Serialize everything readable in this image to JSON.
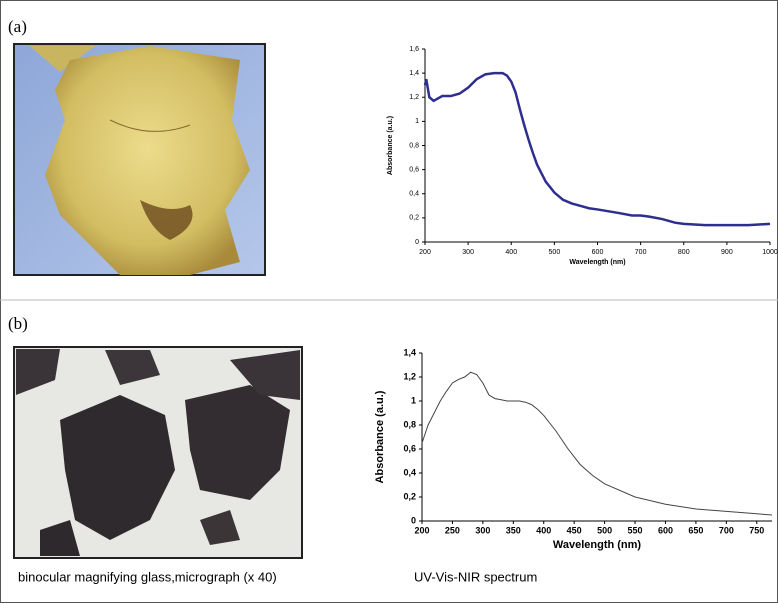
{
  "panel_labels": [
    "(a)",
    "(b)"
  ],
  "captions": [
    "binocular magnifying glass,micrograph (x 40)",
    "UV-Vis-NIR spectrum"
  ],
  "chart_data": [
    {
      "type": "line",
      "xlabel": "Wavelength (nm)",
      "ylabel": "Absorbance (a.u.)",
      "xlim": [
        200,
        1000
      ],
      "xticks": [
        200,
        300,
        400,
        500,
        600,
        700,
        800,
        900,
        1000
      ],
      "ylim": [
        0,
        1.6
      ],
      "yticks": [
        0,
        {
          "value": 0.2,
          "label": "0,2"
        },
        {
          "value": 0.4,
          "label": "0,4"
        },
        {
          "value": 0.6,
          "label": "0,6"
        },
        {
          "value": 0.8,
          "label": "0,8"
        },
        1,
        {
          "value": 1.2,
          "label": "1,2"
        },
        {
          "value": 1.4,
          "label": "1,4"
        },
        {
          "value": 1.6,
          "label": "1,6"
        }
      ],
      "series": [
        {
          "color": "#2e2e8f",
          "x": [
            200,
            203,
            210,
            220,
            230,
            240,
            260,
            280,
            300,
            320,
            340,
            360,
            380,
            390,
            400,
            410,
            420,
            430,
            440,
            450,
            460,
            480,
            500,
            520,
            540,
            560,
            580,
            600,
            650,
            680,
            700,
            720,
            750,
            780,
            800,
            850,
            900,
            950,
            1000
          ],
          "values": [
            1.3,
            1.35,
            1.2,
            1.17,
            1.19,
            1.21,
            1.21,
            1.23,
            1.28,
            1.35,
            1.39,
            1.4,
            1.4,
            1.38,
            1.33,
            1.24,
            1.1,
            0.97,
            0.85,
            0.74,
            0.64,
            0.5,
            0.41,
            0.35,
            0.32,
            0.3,
            0.28,
            0.27,
            0.24,
            0.22,
            0.22,
            0.21,
            0.19,
            0.16,
            0.15,
            0.14,
            0.14,
            0.14,
            0.15
          ]
        }
      ]
    },
    {
      "type": "line",
      "xlabel": "Wavelength (nm)",
      "ylabel": "Absorbance (a.u.)",
      "xlim": [
        200,
        775
      ],
      "xticks": [
        200,
        250,
        300,
        350,
        400,
        450,
        500,
        550,
        600,
        650,
        700,
        750
      ],
      "ylim": [
        0,
        1.4
      ],
      "yticks": [
        0,
        {
          "value": 0.2,
          "label": "0,2"
        },
        {
          "value": 0.4,
          "label": "0,4"
        },
        {
          "value": 0.6,
          "label": "0,6"
        },
        {
          "value": 0.8,
          "label": "0,8"
        },
        1,
        {
          "value": 1.2,
          "label": "1,2"
        },
        {
          "value": 1.4,
          "label": "1,4"
        }
      ],
      "series": [
        {
          "color": "#444444",
          "x": [
            200,
            210,
            220,
            230,
            240,
            250,
            260,
            270,
            280,
            290,
            300,
            310,
            320,
            330,
            340,
            350,
            360,
            370,
            380,
            390,
            400,
            420,
            440,
            460,
            480,
            500,
            550,
            600,
            650,
            700,
            750,
            775
          ],
          "values": [
            0.65,
            0.8,
            0.9,
            1.0,
            1.08,
            1.15,
            1.18,
            1.2,
            1.24,
            1.22,
            1.15,
            1.05,
            1.02,
            1.01,
            1.0,
            1.0,
            1.0,
            0.99,
            0.97,
            0.93,
            0.88,
            0.75,
            0.6,
            0.47,
            0.38,
            0.31,
            0.2,
            0.14,
            0.1,
            0.08,
            0.06,
            0.05
          ]
        }
      ]
    }
  ]
}
